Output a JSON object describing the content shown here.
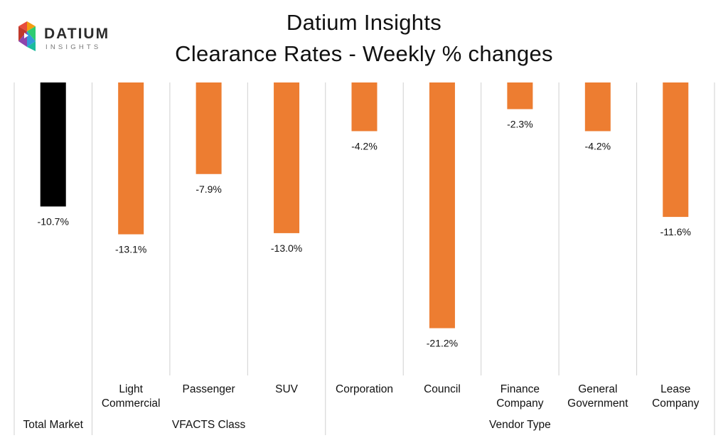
{
  "logo": {
    "name": "DATIUM",
    "tagline": "INSIGHTS",
    "colors": [
      "#e84c3d",
      "#f39c12",
      "#2ecc71",
      "#3498db",
      "#8e44ad",
      "#1abc9c"
    ]
  },
  "title_line1": "Datium Insights",
  "title_line2": "Clearance Rates - Weekly % changes",
  "colors": {
    "highlight": "#000000",
    "bar": "#ed7d31",
    "grid": "#d0d0d0"
  },
  "chart_data": {
    "type": "bar",
    "title": "Datium Insights Clearance Rates - Weekly % changes",
    "ylim": [
      -26,
      0
    ],
    "grid": "vertical separators",
    "categories": [
      {
        "label": [
          "Total Market"
        ],
        "value": -10.7,
        "value_label": "-10.7%",
        "highlight": true
      },
      {
        "label": [
          "Light",
          "Commercial"
        ],
        "value": -13.1,
        "value_label": "-13.1%"
      },
      {
        "label": [
          "Passenger"
        ],
        "value": -7.9,
        "value_label": "-7.9%"
      },
      {
        "label": [
          "SUV"
        ],
        "value": -13.0,
        "value_label": "-13.0%"
      },
      {
        "label": [
          "Corporation"
        ],
        "value": -4.2,
        "value_label": "-4.2%"
      },
      {
        "label": [
          "Council"
        ],
        "value": -21.2,
        "value_label": "-21.2%"
      },
      {
        "label": [
          "Finance",
          "Company"
        ],
        "value": -2.3,
        "value_label": "-2.3%"
      },
      {
        "label": [
          "General",
          "Government"
        ],
        "value": -4.2,
        "value_label": "-4.2%"
      },
      {
        "label": [
          "Lease",
          "Company"
        ],
        "value": -11.6,
        "value_label": "-11.6%"
      }
    ],
    "groups": [
      {
        "label": "",
        "start": 0,
        "end": 0
      },
      {
        "label": "VFACTS Class",
        "start": 1,
        "end": 3
      },
      {
        "label": "Vendor Type",
        "start": 4,
        "end": 8
      }
    ],
    "group_labels_below": [
      {
        "label": "Total Market",
        "start": 0,
        "end": 0
      }
    ]
  }
}
